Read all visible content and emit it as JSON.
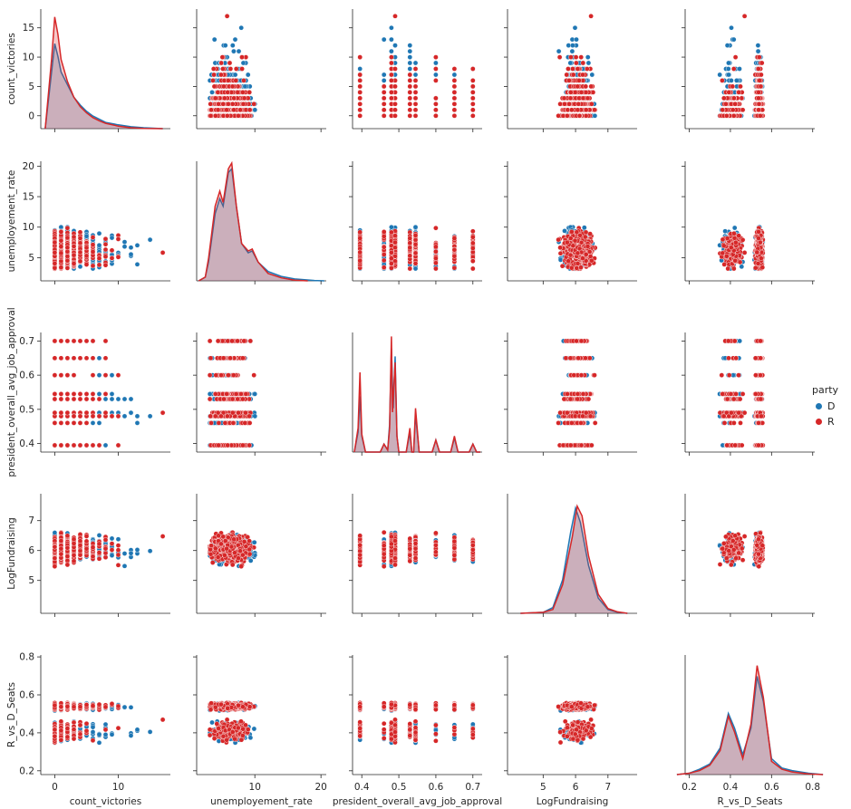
{
  "colors": {
    "D": "#1f77b4",
    "R": "#d62728"
  },
  "legend": {
    "title": "party",
    "entries": [
      "D",
      "R"
    ]
  },
  "chart_data": {
    "type": "scatter",
    "variables": [
      "count_victories",
      "unemployement_rate",
      "president_overall_avg_job_approval",
      "LogFundraising",
      "R_vs_D_Seats"
    ],
    "axis_limits": {
      "count_victories": [
        -2.2,
        18.2
      ],
      "unemployement_rate": [
        1.2,
        20.8
      ],
      "president_overall_avg_job_approval": [
        0.375,
        0.725
      ],
      "LogFundraising": [
        3.9,
        7.9
      ],
      "R_vs_D_Seats": [
        0.18,
        0.81
      ]
    },
    "ticks": {
      "count_victories": [
        0,
        10
      ],
      "count_victories_y": [
        0,
        5,
        10,
        15
      ],
      "unemployement_rate": [
        5,
        10,
        15,
        20
      ],
      "unemployement_rate_x": [
        10,
        20
      ],
      "president_overall_avg_job_approval": [
        0.4,
        0.5,
        0.6,
        0.7
      ],
      "LogFundraising": [
        5,
        6,
        7
      ],
      "R_vs_D_Seats": [
        0.2,
        0.4,
        0.6,
        0.8
      ],
      "R_vs_D_Seats_x": [
        0.2,
        0.4,
        0.6,
        0.8
      ]
    },
    "tick_labels": {
      "count_victories_x": [
        "0",
        "10"
      ],
      "count_victories_y": [
        "0",
        "5",
        "10",
        "15"
      ],
      "unemployement_rate_x": [
        "10",
        "20"
      ],
      "unemployement_rate_y": [
        "5",
        "10",
        "15",
        "20"
      ],
      "president_overall_avg_job_approval": [
        "0.4",
        "0.5",
        "0.6",
        "0.7"
      ],
      "LogFundraising": [
        "5",
        "6",
        "7"
      ],
      "R_vs_D_Seats_x": [
        "0.2",
        "0.4",
        "0.6",
        "0.8"
      ],
      "R_vs_D_Seats_y": [
        "0.2",
        "0.4",
        "0.6",
        "0.8"
      ]
    },
    "diag_ymax": [
      0.38,
      0.32,
      60,
      1.25,
      9
    ],
    "kde": {
      "count_victories": {
        "D": [
          [
            -1.5,
            0
          ],
          [
            -0.5,
            0.18
          ],
          [
            0,
            0.27
          ],
          [
            0.5,
            0.23
          ],
          [
            1,
            0.18
          ],
          [
            2,
            0.14
          ],
          [
            3,
            0.1
          ],
          [
            4,
            0.075
          ],
          [
            5,
            0.055
          ],
          [
            6,
            0.04
          ],
          [
            7,
            0.03
          ],
          [
            8,
            0.02
          ],
          [
            10,
            0.012
          ],
          [
            12,
            0.006
          ],
          [
            14,
            0.003
          ],
          [
            17,
            0
          ]
        ],
        "R": [
          [
            -1.5,
            0
          ],
          [
            -0.5,
            0.22
          ],
          [
            0,
            0.355
          ],
          [
            0.5,
            0.3
          ],
          [
            1,
            0.22
          ],
          [
            2,
            0.15
          ],
          [
            3,
            0.1
          ],
          [
            4,
            0.07
          ],
          [
            5,
            0.05
          ],
          [
            6,
            0.035
          ],
          [
            7,
            0.025
          ],
          [
            8,
            0.017
          ],
          [
            10,
            0.008
          ],
          [
            12,
            0.003
          ],
          [
            14,
            0.001
          ],
          [
            17,
            0
          ]
        ]
      },
      "unemployement_rate": {
        "D": [
          [
            1.5,
            0
          ],
          [
            2.5,
            0.01
          ],
          [
            3,
            0.05
          ],
          [
            4,
            0.18
          ],
          [
            4.7,
            0.22
          ],
          [
            5.2,
            0.2
          ],
          [
            6,
            0.29
          ],
          [
            6.5,
            0.3
          ],
          [
            7.2,
            0.2
          ],
          [
            8,
            0.1
          ],
          [
            9,
            0.075
          ],
          [
            9.6,
            0.08
          ],
          [
            10.5,
            0.05
          ],
          [
            12,
            0.025
          ],
          [
            14,
            0.012
          ],
          [
            16,
            0.005
          ],
          [
            19,
            0.001
          ],
          [
            20.5,
            0
          ]
        ],
        "R": [
          [
            1.5,
            0
          ],
          [
            2.5,
            0.01
          ],
          [
            3,
            0.06
          ],
          [
            4,
            0.2
          ],
          [
            4.7,
            0.24
          ],
          [
            5.2,
            0.21
          ],
          [
            6,
            0.3
          ],
          [
            6.5,
            0.315
          ],
          [
            7.2,
            0.2
          ],
          [
            8,
            0.1
          ],
          [
            9,
            0.08
          ],
          [
            9.6,
            0.085
          ],
          [
            10.5,
            0.05
          ],
          [
            12,
            0.02
          ],
          [
            14,
            0.008
          ],
          [
            16,
            0.002
          ],
          [
            18,
            0
          ]
        ]
      },
      "president_overall_avg_job_approval": {
        "D": [
          [
            0.38,
            0
          ],
          [
            0.39,
            10
          ],
          [
            0.395,
            28
          ],
          [
            0.4,
            8
          ],
          [
            0.41,
            0
          ],
          [
            0.45,
            0
          ],
          [
            0.46,
            4
          ],
          [
            0.47,
            1
          ],
          [
            0.475,
            14
          ],
          [
            0.48,
            52
          ],
          [
            0.485,
            22
          ],
          [
            0.49,
            48
          ],
          [
            0.495,
            8
          ],
          [
            0.5,
            0
          ],
          [
            0.52,
            0
          ],
          [
            0.53,
            10
          ],
          [
            0.535,
            0
          ],
          [
            0.54,
            0
          ],
          [
            0.545,
            19
          ],
          [
            0.555,
            0
          ],
          [
            0.59,
            0
          ],
          [
            0.6,
            6
          ],
          [
            0.61,
            0
          ],
          [
            0.64,
            0
          ],
          [
            0.65,
            7
          ],
          [
            0.66,
            0
          ],
          [
            0.69,
            0
          ],
          [
            0.7,
            4
          ],
          [
            0.71,
            0
          ],
          [
            0.72,
            0
          ]
        ],
        "R": [
          [
            0.38,
            0
          ],
          [
            0.39,
            12
          ],
          [
            0.395,
            40
          ],
          [
            0.4,
            9
          ],
          [
            0.41,
            0
          ],
          [
            0.45,
            0
          ],
          [
            0.46,
            4
          ],
          [
            0.47,
            1
          ],
          [
            0.475,
            12
          ],
          [
            0.48,
            58
          ],
          [
            0.483,
            20
          ],
          [
            0.49,
            45
          ],
          [
            0.495,
            8
          ],
          [
            0.5,
            0
          ],
          [
            0.52,
            0
          ],
          [
            0.53,
            12
          ],
          [
            0.535,
            0
          ],
          [
            0.54,
            0
          ],
          [
            0.545,
            22
          ],
          [
            0.555,
            0
          ],
          [
            0.59,
            0
          ],
          [
            0.6,
            6
          ],
          [
            0.61,
            0
          ],
          [
            0.64,
            0
          ],
          [
            0.65,
            8
          ],
          [
            0.66,
            0
          ],
          [
            0.69,
            0
          ],
          [
            0.7,
            4
          ],
          [
            0.71,
            0
          ],
          [
            0.72,
            0
          ]
        ]
      },
      "LogFundraising": {
        "D": [
          [
            4.3,
            0
          ],
          [
            5,
            0.01
          ],
          [
            5.3,
            0.06
          ],
          [
            5.6,
            0.35
          ],
          [
            5.85,
            0.85
          ],
          [
            6.0,
            1.1
          ],
          [
            6.15,
            0.95
          ],
          [
            6.4,
            0.5
          ],
          [
            6.7,
            0.16
          ],
          [
            7.0,
            0.04
          ],
          [
            7.3,
            0.01
          ],
          [
            7.6,
            0
          ]
        ],
        "R": [
          [
            4.3,
            0
          ],
          [
            5,
            0.01
          ],
          [
            5.3,
            0.04
          ],
          [
            5.6,
            0.3
          ],
          [
            5.9,
            0.8
          ],
          [
            6.05,
            1.12
          ],
          [
            6.2,
            1.02
          ],
          [
            6.4,
            0.6
          ],
          [
            6.7,
            0.2
          ],
          [
            7.0,
            0.05
          ],
          [
            7.3,
            0.015
          ],
          [
            7.6,
            0
          ]
        ]
      },
      "R_vs_D_Seats": {
        "D": [
          [
            0.14,
            0
          ],
          [
            0.2,
            0.1
          ],
          [
            0.25,
            0.4
          ],
          [
            0.3,
            0.8
          ],
          [
            0.35,
            2.0
          ],
          [
            0.39,
            4.6
          ],
          [
            0.42,
            3.5
          ],
          [
            0.46,
            1.5
          ],
          [
            0.5,
            3.5
          ],
          [
            0.53,
            7.4
          ],
          [
            0.56,
            5.5
          ],
          [
            0.6,
            1.2
          ],
          [
            0.65,
            0.5
          ],
          [
            0.7,
            0.3
          ],
          [
            0.78,
            0.1
          ],
          [
            0.85,
            0
          ]
        ],
        "R": [
          [
            0.14,
            0
          ],
          [
            0.2,
            0.1
          ],
          [
            0.25,
            0.3
          ],
          [
            0.3,
            0.7
          ],
          [
            0.35,
            1.8
          ],
          [
            0.39,
            4.4
          ],
          [
            0.42,
            3.2
          ],
          [
            0.46,
            1.2
          ],
          [
            0.5,
            3.8
          ],
          [
            0.53,
            8.2
          ],
          [
            0.56,
            5.8
          ],
          [
            0.6,
            1.0
          ],
          [
            0.65,
            0.4
          ],
          [
            0.7,
            0.2
          ],
          [
            0.78,
            0.05
          ],
          [
            0.85,
            0
          ]
        ]
      }
    }
  }
}
